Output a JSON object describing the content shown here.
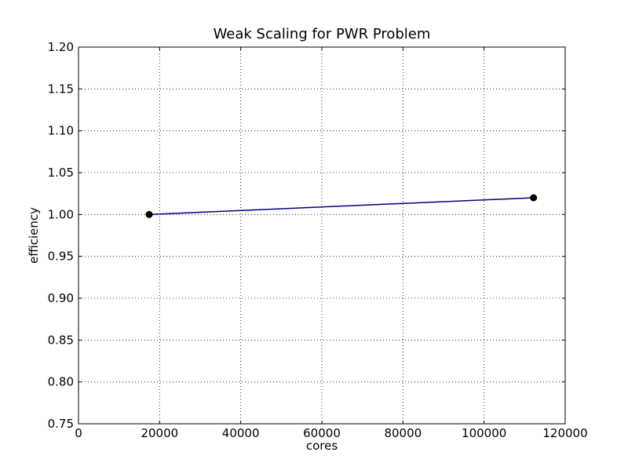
{
  "chart_data": {
    "type": "line",
    "title": "Weak Scaling for PWR Problem",
    "xlabel": "cores",
    "ylabel": "efficiency",
    "xlim": [
      0,
      120000
    ],
    "ylim": [
      0.75,
      1.2
    ],
    "x_ticks": [
      0,
      20000,
      40000,
      60000,
      80000,
      100000,
      120000
    ],
    "x_tick_labels": [
      "0",
      "20000",
      "40000",
      "60000",
      "80000",
      "100000",
      "120000"
    ],
    "y_ticks": [
      0.75,
      0.8,
      0.85,
      0.9,
      0.95,
      1.0,
      1.05,
      1.1,
      1.15,
      1.2
    ],
    "y_tick_labels": [
      "0.75",
      "0.80",
      "0.85",
      "0.90",
      "0.95",
      "1.00",
      "1.05",
      "1.10",
      "1.15",
      "1.20"
    ],
    "grid": true,
    "series": [
      {
        "x": [
          17424,
          112200
        ],
        "y": [
          1.0,
          1.02
        ],
        "line_color": "#000080",
        "marker_color": "#000000"
      }
    ]
  }
}
